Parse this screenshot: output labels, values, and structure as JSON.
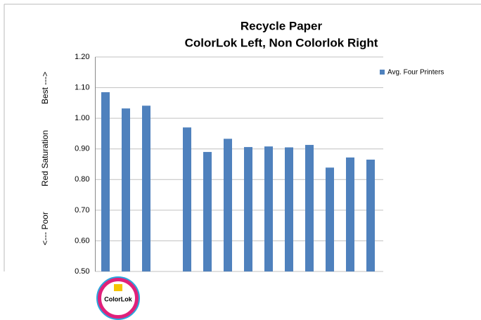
{
  "chart_data": {
    "type": "bar",
    "title": "Recycle Paper",
    "subtitle": "ColorLok Left, Non Colorlok Right",
    "ylabel_parts": [
      "Best  --->",
      "Red Saturation",
      "<---  Poor"
    ],
    "categories": [
      null,
      null,
      null,
      null,
      null,
      null,
      null,
      null,
      null,
      null,
      null,
      null,
      null,
      null
    ],
    "series": [
      {
        "name": "Avg. Four Printers",
        "color": "#4f81bd",
        "values": [
          1.085,
          1.032,
          1.041,
          null,
          0.97,
          0.89,
          0.933,
          0.906,
          0.908,
          0.905,
          0.913,
          0.839,
          0.872,
          0.865
        ]
      }
    ],
    "ylim": [
      0.5,
      1.2
    ],
    "yticks": [
      {
        "value": 0.5,
        "label": "0.50"
      },
      {
        "value": 0.6,
        "label": "0.60"
      },
      {
        "value": 0.7,
        "label": "0.70"
      },
      {
        "value": 0.8,
        "label": "0.80"
      },
      {
        "value": 0.9,
        "label": "0.90"
      },
      {
        "value": 1.0,
        "label": "1.00"
      },
      {
        "value": 1.1,
        "label": "1.10"
      },
      {
        "value": 1.2,
        "label": "1.20"
      }
    ],
    "grid": true,
    "legend": "right",
    "logo_text": "ColorLok"
  }
}
